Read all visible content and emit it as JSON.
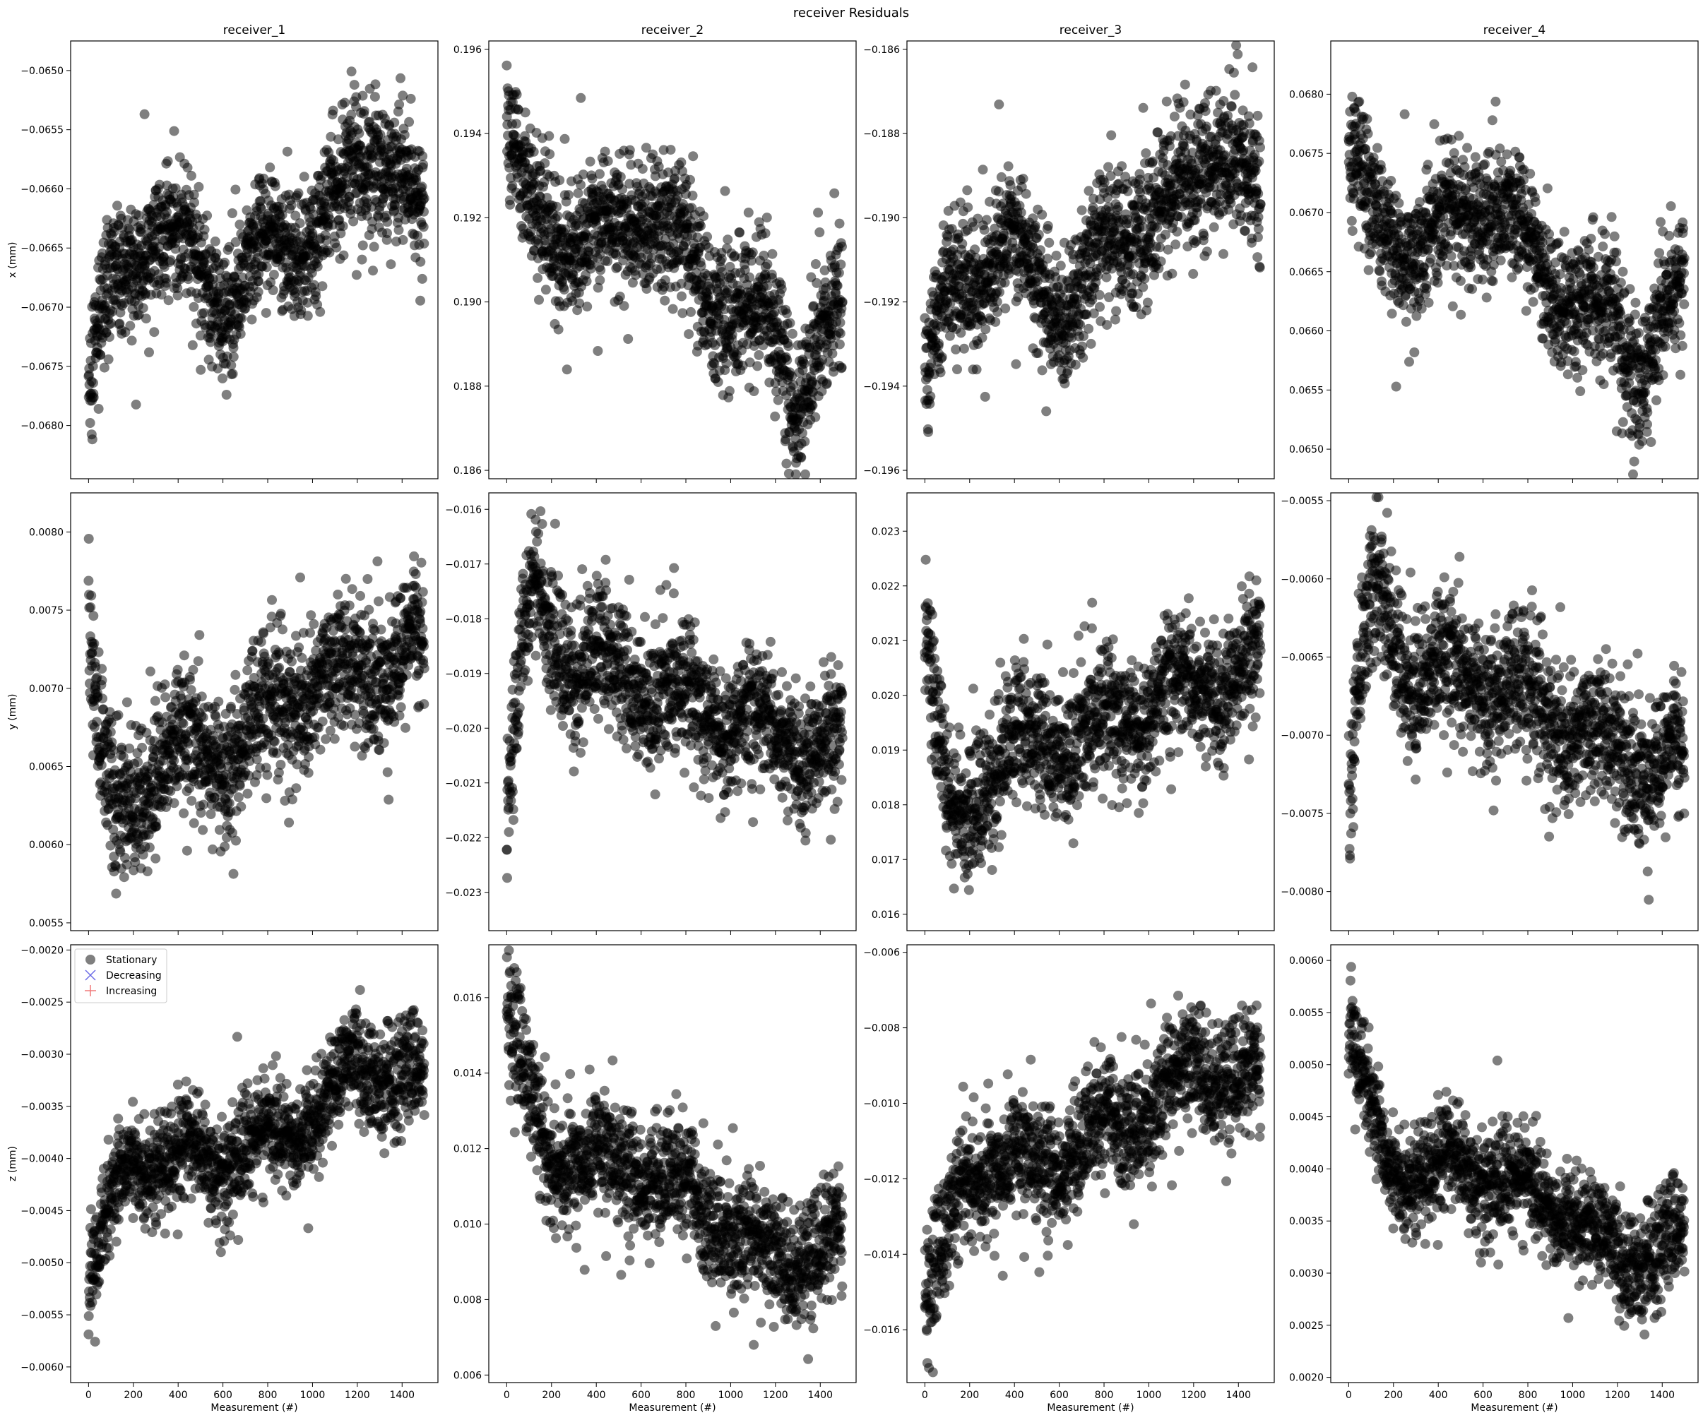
{
  "figure": {
    "suptitle": "receiver Residuals"
  },
  "legend": {
    "placement": "upper-left of receiver_1 z panel",
    "entries": [
      {
        "label": "Stationary",
        "marker": "circle",
        "color": "#000000"
      },
      {
        "label": "Decreasing",
        "marker": "x",
        "color": "#6a6ae6"
      },
      {
        "label": "Increasing",
        "marker": "plus",
        "color": "#f07a7a"
      }
    ]
  },
  "chart_data": {
    "type": "scatter",
    "marker_color": "#000000",
    "marker_alpha": 0.5,
    "grid": false,
    "xlabel": "Measurement (#)",
    "xlim": [
      -80,
      1560
    ],
    "xticks": [
      0,
      200,
      400,
      600,
      800,
      1000,
      1200,
      1400
    ],
    "n_points": 1500,
    "columns": [
      "receiver_1",
      "receiver_2",
      "receiver_3",
      "receiver_4"
    ],
    "rows": [
      "x (mm)",
      "y (mm)",
      "z (mm)"
    ],
    "panels": [
      {
        "receiver": "receiver_1",
        "ylabel": "x (mm)",
        "ylim": [
          -0.06845,
          -0.06475
        ],
        "yticks": [
          -0.068,
          -0.0675,
          -0.067,
          -0.0665,
          -0.066,
          -0.0655,
          -0.065
        ],
        "decimals": 4,
        "trend": [
          [
            0,
            -0.0676
          ],
          [
            100,
            -0.0669
          ],
          [
            300,
            -0.0663
          ],
          [
            450,
            -0.0666
          ],
          [
            600,
            -0.067
          ],
          [
            800,
            -0.0665
          ],
          [
            1000,
            -0.0664
          ],
          [
            1300,
            -0.0656
          ],
          [
            1500,
            -0.0663
          ]
        ],
        "spread": 0.00028
      },
      {
        "receiver": "receiver_2",
        "ylabel": "",
        "ylim": [
          0.1858,
          0.1962
        ],
        "yticks": [
          0.186,
          0.188,
          0.19,
          0.192,
          0.194,
          0.196
        ],
        "decimals": 3,
        "trend": [
          [
            0,
            0.194
          ],
          [
            100,
            0.192
          ],
          [
            400,
            0.1914
          ],
          [
            650,
            0.1923
          ],
          [
            900,
            0.1902
          ],
          [
            1200,
            0.1893
          ],
          [
            1280,
            0.188
          ],
          [
            1500,
            0.1897
          ]
        ],
        "spread": 0.0008
      },
      {
        "receiver": "receiver_3",
        "ylabel": "",
        "ylim": [
          -0.1962,
          -0.1858
        ],
        "yticks": [
          -0.196,
          -0.194,
          -0.192,
          -0.19,
          -0.188,
          -0.186
        ],
        "decimals": 3,
        "trend": [
          [
            0,
            -0.194
          ],
          [
            100,
            -0.192
          ],
          [
            350,
            -0.1905
          ],
          [
            600,
            -0.1922
          ],
          [
            900,
            -0.1903
          ],
          [
            1200,
            -0.1893
          ],
          [
            1300,
            -0.1878
          ],
          [
            1500,
            -0.19
          ]
        ],
        "spread": 0.0008
      },
      {
        "receiver": "receiver_4",
        "ylabel": "",
        "ylim": [
          0.06475,
          0.06845
        ],
        "yticks": [
          0.065,
          0.0655,
          0.066,
          0.0665,
          0.067,
          0.0675,
          0.068
        ],
        "decimals": 4,
        "trend": [
          [
            0,
            0.0676
          ],
          [
            100,
            0.0669
          ],
          [
            300,
            0.0667
          ],
          [
            650,
            0.0671
          ],
          [
            900,
            0.0664
          ],
          [
            1200,
            0.066
          ],
          [
            1280,
            0.0657
          ],
          [
            1500,
            0.0664
          ]
        ],
        "spread": 0.00028
      },
      {
        "receiver": "receiver_1",
        "ylabel": "y (mm)",
        "ylim": [
          0.00545,
          0.00825
        ],
        "yticks": [
          0.0055,
          0.006,
          0.0065,
          0.007,
          0.0075,
          0.008
        ],
        "decimals": 4,
        "trend": [
          [
            0,
            0.0075
          ],
          [
            40,
            0.0067
          ],
          [
            120,
            0.0061
          ],
          [
            300,
            0.0066
          ],
          [
            600,
            0.0066
          ],
          [
            1000,
            0.007
          ],
          [
            1400,
            0.0072
          ],
          [
            1500,
            0.0072
          ]
        ],
        "spread": 0.00022
      },
      {
        "receiver": "receiver_2",
        "ylabel": "",
        "ylim": [
          -0.0237,
          -0.0157
        ],
        "yticks": [
          -0.023,
          -0.022,
          -0.021,
          -0.02,
          -0.019,
          -0.018,
          -0.017,
          -0.016
        ],
        "decimals": 3,
        "trend": [
          [
            0,
            -0.0215
          ],
          [
            60,
            -0.019
          ],
          [
            120,
            -0.0175
          ],
          [
            300,
            -0.0188
          ],
          [
            700,
            -0.0193
          ],
          [
            1100,
            -0.02
          ],
          [
            1500,
            -0.0205
          ]
        ],
        "spread": 0.0006
      },
      {
        "receiver": "receiver_3",
        "ylabel": "",
        "ylim": [
          0.0157,
          0.0237
        ],
        "yticks": [
          0.016,
          0.017,
          0.018,
          0.019,
          0.02,
          0.021,
          0.022,
          0.023
        ],
        "decimals": 3,
        "trend": [
          [
            0,
            0.0215
          ],
          [
            60,
            0.019
          ],
          [
            120,
            0.0175
          ],
          [
            300,
            0.0188
          ],
          [
            700,
            0.0193
          ],
          [
            1100,
            0.02
          ],
          [
            1500,
            0.0205
          ]
        ],
        "spread": 0.0006
      },
      {
        "receiver": "receiver_4",
        "ylabel": "",
        "ylim": [
          -0.00825,
          -0.00545
        ],
        "yticks": [
          -0.008,
          -0.0075,
          -0.007,
          -0.0065,
          -0.006,
          -0.0055
        ],
        "decimals": 4,
        "trend": [
          [
            0,
            -0.0075
          ],
          [
            40,
            -0.0067
          ],
          [
            120,
            -0.0061
          ],
          [
            300,
            -0.0066
          ],
          [
            600,
            -0.0066
          ],
          [
            1000,
            -0.007
          ],
          [
            1400,
            -0.0072
          ],
          [
            1500,
            -0.0072
          ]
        ],
        "spread": 0.00022
      },
      {
        "receiver": "receiver_1",
        "ylabel": "z (mm)",
        "ylim": [
          -0.00615,
          -0.00195
        ],
        "yticks": [
          -0.006,
          -0.0055,
          -0.005,
          -0.0045,
          -0.004,
          -0.0035,
          -0.003,
          -0.0025,
          -0.002
        ],
        "decimals": 4,
        "trend": [
          [
            0,
            -0.0053
          ],
          [
            100,
            -0.0045
          ],
          [
            180,
            -0.004
          ],
          [
            600,
            -0.004
          ],
          [
            1000,
            -0.0036
          ],
          [
            1200,
            -0.0031
          ],
          [
            1500,
            -0.0033
          ]
        ],
        "spread": 0.00025
      },
      {
        "receiver": "receiver_2",
        "ylabel": "",
        "ylim": [
          0.0058,
          0.0174
        ],
        "yticks": [
          0.006,
          0.008,
          0.01,
          0.012,
          0.014,
          0.016
        ],
        "decimals": 3,
        "trend": [
          [
            0,
            0.0155
          ],
          [
            100,
            0.0135
          ],
          [
            180,
            0.0118
          ],
          [
            600,
            0.0115
          ],
          [
            1000,
            0.01
          ],
          [
            1200,
            0.009
          ],
          [
            1500,
            0.0095
          ]
        ],
        "spread": 0.0008
      },
      {
        "receiver": "receiver_3",
        "ylabel": "",
        "ylim": [
          -0.0174,
          -0.0058
        ],
        "yticks": [
          -0.016,
          -0.014,
          -0.012,
          -0.01,
          -0.008,
          -0.006
        ],
        "decimals": 3,
        "trend": [
          [
            0,
            -0.0155
          ],
          [
            100,
            -0.0135
          ],
          [
            180,
            -0.0118
          ],
          [
            600,
            -0.0115
          ],
          [
            1000,
            -0.01
          ],
          [
            1200,
            -0.009
          ],
          [
            1500,
            -0.0095
          ]
        ],
        "spread": 0.0008
      },
      {
        "receiver": "receiver_4",
        "ylabel": "",
        "ylim": [
          0.00195,
          0.00615
        ],
        "yticks": [
          0.002,
          0.0025,
          0.003,
          0.0035,
          0.004,
          0.0045,
          0.005,
          0.0055,
          0.006
        ],
        "decimals": 4,
        "trend": [
          [
            0,
            0.0053
          ],
          [
            100,
            0.0045
          ],
          [
            180,
            0.004
          ],
          [
            600,
            0.004
          ],
          [
            1000,
            0.0036
          ],
          [
            1200,
            0.0031
          ],
          [
            1500,
            0.0033
          ]
        ],
        "spread": 0.00025
      }
    ]
  }
}
